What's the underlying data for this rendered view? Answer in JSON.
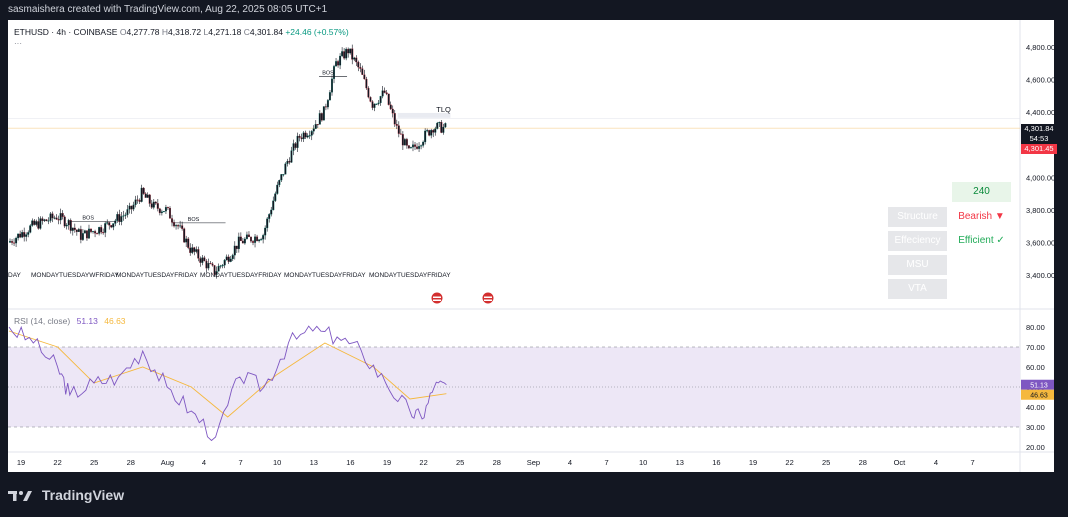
{
  "header": {
    "attribution": "sasmaishera created with TradingView.com, Aug 22, 2025 08:05 UTC+1"
  },
  "legend": {
    "symbol": "ETHUSD · 4h · COINBASE",
    "o_label": "O",
    "o": "4,277.78",
    "h_label": "H",
    "h": "4,318.72",
    "l_label": "L",
    "l": "4,271.18",
    "c_label": "C",
    "c": "4,301.84",
    "change": "+24.46 (+0.57%)",
    "dots": "···"
  },
  "price_axis": {
    "ticks": [
      "4,800.00",
      "4,600.00",
      "4,400.00",
      "4,200.00",
      "4,000.00",
      "3,800.00",
      "3,600.00",
      "3,400.00"
    ],
    "last_price": "4,301.84",
    "countdown": "54:53",
    "second_price": "4,301.45"
  },
  "rsi": {
    "label": "RSI (14, close)",
    "rsi_value": "51.13",
    "ma_value": "46.63",
    "ticks": [
      "80.00",
      "70.00",
      "60.00",
      "50.00",
      "40.00",
      "30.00",
      "20.00"
    ]
  },
  "time_axis": {
    "ticks": [
      "19",
      "22",
      "25",
      "28",
      "Aug",
      "4",
      "7",
      "10",
      "13",
      "16",
      "19",
      "22",
      "25",
      "28",
      "Sep",
      "4",
      "7",
      "10",
      "13",
      "16",
      "19",
      "22",
      "25",
      "28",
      "Oct",
      "4",
      "7"
    ]
  },
  "annotations": {
    "bos": [
      "BOS",
      "BOS",
      "BOS"
    ],
    "tlq": "TLQ"
  },
  "day_labels": [
    "DAY",
    "MONDAYTUESDAYWFRIDAY",
    "MONDAYTUESDAYFRIDAY",
    "MONDAYTUESDAYFRIDAY",
    "MONDAYTUESDAYFRIDAY",
    "MONDAYTUESDAYFRIDAY"
  ],
  "signal_table": {
    "number": "240",
    "rows": [
      {
        "label": "Structure",
        "value": "Bearish ▼"
      },
      {
        "label": "Effeciency",
        "value": "Efficient ✓"
      },
      {
        "label": "MSU",
        "value": ""
      },
      {
        "label": "VTA",
        "value": ""
      }
    ]
  },
  "footer": {
    "brand": "TradingView"
  },
  "colors": {
    "up": "#089981",
    "down": "#f23645",
    "rsi": "#7e57c2",
    "rsi_ma": "#f5b83d",
    "band": "#ede7f6"
  },
  "chart_data": [
    {
      "type": "candlestick",
      "title": "ETHUSD · 4h · COINBASE",
      "x_range": [
        "Jul 17",
        "Oct 9"
      ],
      "ylim": [
        3300,
        4900
      ],
      "y_ticks": [
        3400,
        3600,
        3800,
        4000,
        4200,
        4400,
        4600,
        4800
      ],
      "close_path": [
        {
          "d": "Jul 17",
          "v": 3600
        },
        {
          "d": "Jul 19",
          "v": 3700
        },
        {
          "d": "Jul 21",
          "v": 3760
        },
        {
          "d": "Jul 22",
          "v": 3720
        },
        {
          "d": "Jul 23",
          "v": 3640
        },
        {
          "d": "Jul 25",
          "v": 3700
        },
        {
          "d": "Jul 27",
          "v": 3790
        },
        {
          "d": "Jul 28",
          "v": 3900
        },
        {
          "d": "Jul 29",
          "v": 3820
        },
        {
          "d": "Jul 30",
          "v": 3800
        },
        {
          "d": "Jul 31",
          "v": 3700
        },
        {
          "d": "Aug 1",
          "v": 3560
        },
        {
          "d": "Aug 3",
          "v": 3420
        },
        {
          "d": "Aug 4",
          "v": 3500
        },
        {
          "d": "Aug 5",
          "v": 3600
        },
        {
          "d": "Aug 7",
          "v": 3650
        },
        {
          "d": "Aug 8",
          "v": 3900
        },
        {
          "d": "Aug 9",
          "v": 4100
        },
        {
          "d": "Aug 10",
          "v": 4250
        },
        {
          "d": "Aug 11",
          "v": 4300
        },
        {
          "d": "Aug 12",
          "v": 4400
        },
        {
          "d": "Aug 13",
          "v": 4700
        },
        {
          "d": "Aug 14",
          "v": 4780
        },
        {
          "d": "Aug 15",
          "v": 4650
        },
        {
          "d": "Aug 16",
          "v": 4450
        },
        {
          "d": "Aug 17",
          "v": 4520
        },
        {
          "d": "Aug 18",
          "v": 4300
        },
        {
          "d": "Aug 19",
          "v": 4150
        },
        {
          "d": "Aug 20",
          "v": 4230
        },
        {
          "d": "Aug 21",
          "v": 4310
        },
        {
          "d": "Aug 22",
          "v": 4301.84
        }
      ],
      "last_price": 4301.84,
      "levels": [
        {
          "label": "TLQ",
          "value": 4380
        }
      ]
    },
    {
      "type": "line",
      "title": "RSI (14, close)",
      "ylim": [
        15,
        85
      ],
      "y_ticks": [
        20,
        30,
        40,
        50,
        60,
        70,
        80
      ],
      "bands": [
        30,
        70
      ],
      "series": [
        {
          "name": "RSI",
          "color": "#7e57c2",
          "values": [
            {
              "d": "Jul 17",
              "v": 80
            },
            {
              "d": "Jul 19",
              "v": 72
            },
            {
              "d": "Jul 21",
              "v": 60
            },
            {
              "d": "Jul 22",
              "v": 46
            },
            {
              "d": "Jul 24",
              "v": 52
            },
            {
              "d": "Jul 26",
              "v": 55
            },
            {
              "d": "Jul 28",
              "v": 68
            },
            {
              "d": "Jul 30",
              "v": 50
            },
            {
              "d": "Aug 1",
              "v": 38
            },
            {
              "d": "Aug 3",
              "v": 25
            },
            {
              "d": "Aug 5",
              "v": 55
            },
            {
              "d": "Aug 7",
              "v": 50
            },
            {
              "d": "Aug 9",
              "v": 72
            },
            {
              "d": "Aug 11",
              "v": 78
            },
            {
              "d": "Aug 13",
              "v": 75
            },
            {
              "d": "Aug 15",
              "v": 68
            },
            {
              "d": "Aug 17",
              "v": 52
            },
            {
              "d": "Aug 19",
              "v": 38
            },
            {
              "d": "Aug 20",
              "v": 34
            },
            {
              "d": "Aug 21",
              "v": 50
            },
            {
              "d": "Aug 22",
              "v": 51.13
            }
          ]
        },
        {
          "name": "RSI-based MA",
          "color": "#f5b83d",
          "values": [
            {
              "d": "Jul 17",
              "v": 78
            },
            {
              "d": "Jul 21",
              "v": 70
            },
            {
              "d": "Jul 24",
              "v": 52
            },
            {
              "d": "Jul 28",
              "v": 60
            },
            {
              "d": "Aug 1",
              "v": 50
            },
            {
              "d": "Aug 4",
              "v": 35
            },
            {
              "d": "Aug 8",
              "v": 56
            },
            {
              "d": "Aug 12",
              "v": 72
            },
            {
              "d": "Aug 16",
              "v": 60
            },
            {
              "d": "Aug 19",
              "v": 44
            },
            {
              "d": "Aug 22",
              "v": 46.63
            }
          ]
        }
      ]
    }
  ]
}
